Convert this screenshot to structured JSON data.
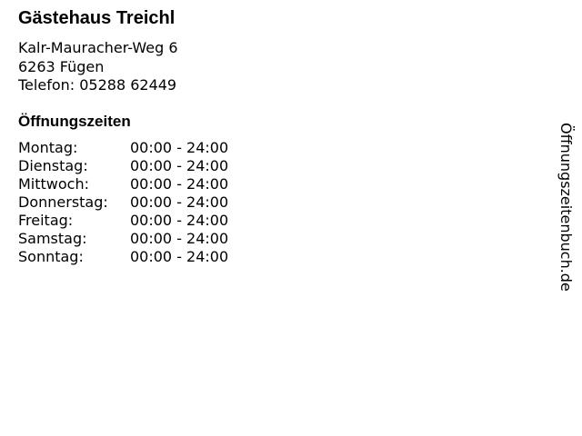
{
  "name": "Gästehaus Treichl",
  "address": {
    "street": "Kalr-Mauracher-Weg 6",
    "city": "6263 Fügen",
    "phone": "Telefon: 05288 62449"
  },
  "hours_heading": "Öffnungszeiten",
  "hours": [
    {
      "day": "Montag:",
      "time": "00:00 - 24:00"
    },
    {
      "day": "Dienstag:",
      "time": "00:00 - 24:00"
    },
    {
      "day": "Mittwoch:",
      "time": "00:00 - 24:00"
    },
    {
      "day": "Donnerstag:",
      "time": "00:00 - 24:00"
    },
    {
      "day": "Freitag:",
      "time": "00:00 - 24:00"
    },
    {
      "day": "Samstag:",
      "time": "00:00 - 24:00"
    },
    {
      "day": "Sonntag:",
      "time": "00:00 - 24:00"
    }
  ],
  "watermark": "Öffnungszeitenbuch.de"
}
